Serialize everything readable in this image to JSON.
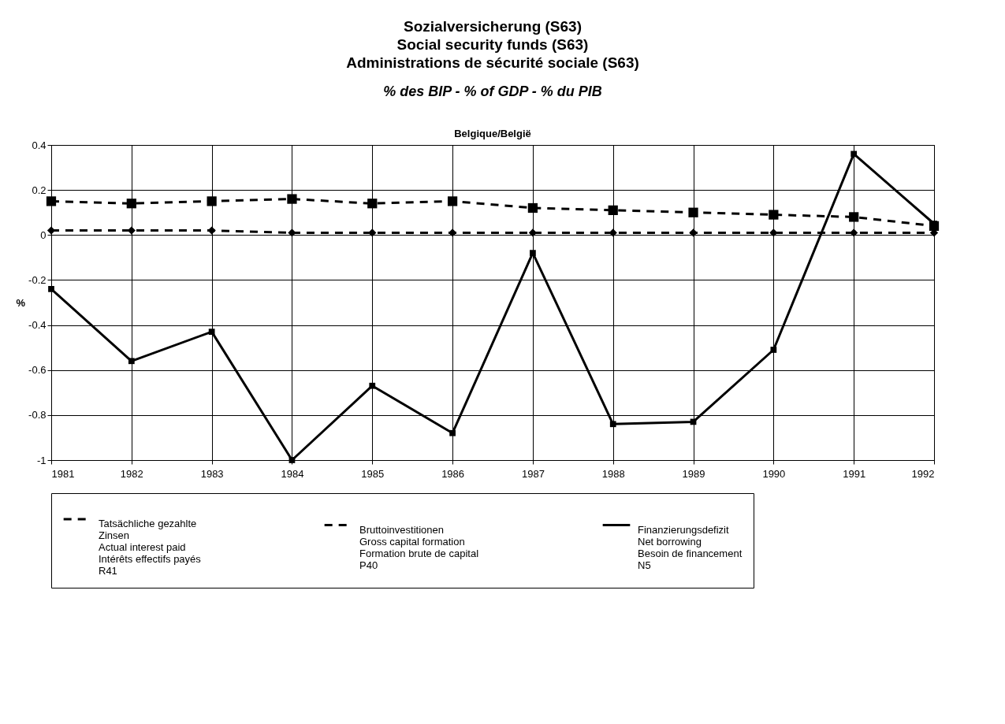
{
  "chart_data": {
    "type": "line",
    "title": "Sozialversicherung (S63)\nSocial security funds (S63)\nAdministrations de sécurité sociale (S63)",
    "subtitle": "% des BIP - % of GDP - % du PIB",
    "annotations": [
      "Belgique/België"
    ],
    "ylabel": "%",
    "categories": [
      "1981",
      "1982",
      "1983",
      "1984",
      "1985",
      "1986",
      "1987",
      "1988",
      "1989",
      "1990",
      "1991",
      "1992"
    ],
    "series": [
      {
        "name": "Tatsächliche gezahlte\nZinsen\nActual interest paid\nIntérêts effectifs payés\nR41",
        "color": "#000000",
        "line_style": "dashed",
        "marker": "square",
        "values": [
          0.15,
          0.14,
          0.15,
          0.16,
          0.14,
          0.15,
          0.12,
          0.11,
          0.1,
          0.09,
          0.08,
          0.04
        ]
      },
      {
        "name": "Bruttoinvestitionen\nGross capital formation\nFormation brute de capital\nP40",
        "color": "#000000",
        "line_style": "dashed",
        "marker": "diamond",
        "values": [
          0.02,
          0.02,
          0.02,
          0.01,
          0.01,
          0.01,
          0.01,
          0.01,
          0.01,
          0.01,
          0.01,
          0.01
        ]
      },
      {
        "name": "Finanzierungsdefizit\nNet borrowing\nBesoin de financement\nN5",
        "color": "#000000",
        "line_style": "solid",
        "marker": "square",
        "values": [
          -0.24,
          -0.56,
          -0.43,
          -1.0,
          -0.67,
          -0.88,
          -0.08,
          -0.84,
          -0.83,
          -0.51,
          0.36,
          0.05
        ]
      }
    ],
    "ylim": [
      -1,
      0.4
    ],
    "yticks": [
      -1,
      -0.8,
      -0.6,
      -0.4,
      -0.2,
      0,
      0.2,
      0.4
    ],
    "grid": true,
    "legend": "bottom"
  }
}
